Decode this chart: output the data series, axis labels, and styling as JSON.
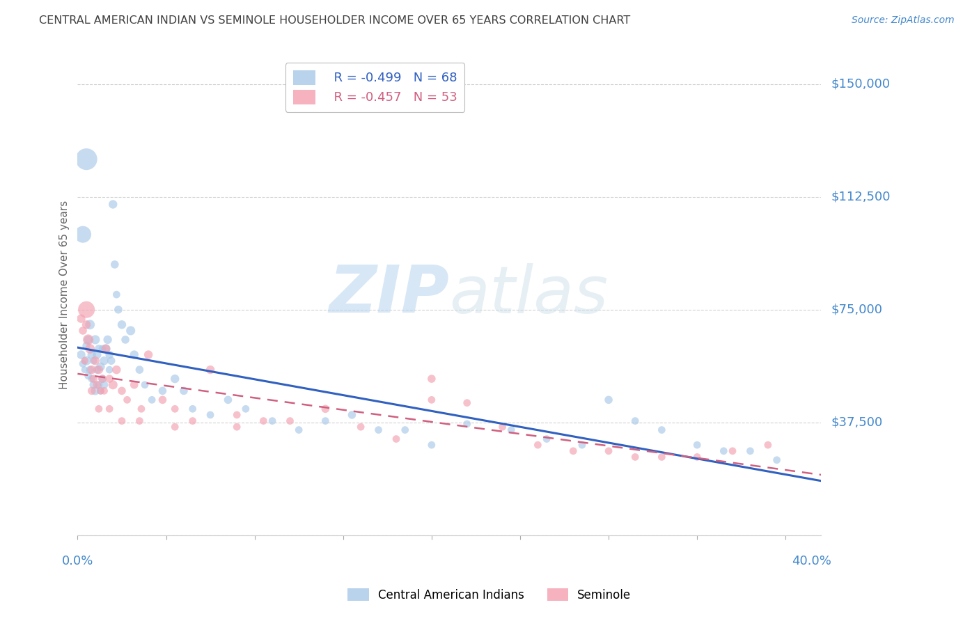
{
  "title": "CENTRAL AMERICAN INDIAN VS SEMINOLE HOUSEHOLDER INCOME OVER 65 YEARS CORRELATION CHART",
  "source": "Source: ZipAtlas.com",
  "ylabel": "Householder Income Over 65 years",
  "yticks": [
    0,
    37500,
    75000,
    112500,
    150000
  ],
  "ytick_labels": [
    "",
    "$37,500",
    "$75,000",
    "$112,500",
    "$150,000"
  ],
  "xlim": [
    0.0,
    0.42
  ],
  "ylim": [
    0,
    160000
  ],
  "legend_blue_r": "R = -0.499",
  "legend_blue_n": "N = 68",
  "legend_pink_r": "R = -0.457",
  "legend_pink_n": "N = 53",
  "blue_color": "#a8c8e8",
  "pink_color": "#f4a0b0",
  "line_blue": "#3060c0",
  "line_pink": "#d06080",
  "watermark_zip": "ZIP",
  "watermark_atlas": "atlas",
  "background_color": "#ffffff",
  "grid_color": "#cccccc",
  "title_color": "#404040",
  "axis_label_color": "#4488cc",
  "ylabel_color": "#666666",
  "blue_scatter_x": [
    0.002,
    0.003,
    0.004,
    0.005,
    0.005,
    0.006,
    0.006,
    0.007,
    0.007,
    0.008,
    0.008,
    0.009,
    0.009,
    0.01,
    0.01,
    0.011,
    0.011,
    0.012,
    0.012,
    0.013,
    0.013,
    0.014,
    0.014,
    0.015,
    0.015,
    0.016,
    0.017,
    0.018,
    0.018,
    0.019,
    0.02,
    0.021,
    0.022,
    0.023,
    0.025,
    0.027,
    0.03,
    0.032,
    0.035,
    0.038,
    0.042,
    0.048,
    0.055,
    0.06,
    0.065,
    0.075,
    0.085,
    0.095,
    0.11,
    0.125,
    0.14,
    0.155,
    0.17,
    0.185,
    0.2,
    0.22,
    0.245,
    0.265,
    0.285,
    0.3,
    0.315,
    0.33,
    0.35,
    0.365,
    0.38,
    0.395,
    0.005,
    0.003
  ],
  "blue_scatter_y": [
    60000,
    57000,
    55000,
    58000,
    63000,
    53000,
    65000,
    55000,
    70000,
    52000,
    60000,
    50000,
    58000,
    48000,
    65000,
    60000,
    55000,
    50000,
    62000,
    48000,
    56000,
    52000,
    62000,
    58000,
    50000,
    62000,
    65000,
    60000,
    55000,
    58000,
    110000,
    90000,
    80000,
    75000,
    70000,
    65000,
    68000,
    60000,
    55000,
    50000,
    45000,
    48000,
    52000,
    48000,
    42000,
    40000,
    45000,
    42000,
    38000,
    35000,
    38000,
    40000,
    35000,
    35000,
    30000,
    37000,
    35000,
    32000,
    30000,
    45000,
    38000,
    35000,
    30000,
    28000,
    28000,
    25000,
    125000,
    100000
  ],
  "blue_scatter_size": [
    80,
    60,
    50,
    90,
    70,
    60,
    80,
    70,
    100,
    60,
    80,
    70,
    60,
    80,
    90,
    80,
    70,
    60,
    70,
    60,
    80,
    70,
    60,
    80,
    70,
    90,
    80,
    70,
    60,
    70,
    80,
    70,
    60,
    70,
    80,
    70,
    90,
    80,
    70,
    60,
    60,
    70,
    80,
    70,
    60,
    60,
    70,
    60,
    60,
    60,
    60,
    70,
    60,
    60,
    60,
    60,
    60,
    60,
    60,
    70,
    60,
    60,
    60,
    60,
    60,
    60,
    500,
    300
  ],
  "pink_scatter_x": [
    0.002,
    0.003,
    0.004,
    0.005,
    0.006,
    0.007,
    0.008,
    0.009,
    0.01,
    0.011,
    0.012,
    0.013,
    0.014,
    0.015,
    0.016,
    0.018,
    0.02,
    0.022,
    0.025,
    0.028,
    0.032,
    0.036,
    0.04,
    0.048,
    0.055,
    0.065,
    0.075,
    0.09,
    0.105,
    0.12,
    0.14,
    0.16,
    0.18,
    0.2,
    0.22,
    0.24,
    0.26,
    0.28,
    0.3,
    0.315,
    0.33,
    0.35,
    0.37,
    0.39,
    0.005,
    0.008,
    0.012,
    0.018,
    0.025,
    0.035,
    0.055,
    0.09,
    0.2
  ],
  "pink_scatter_y": [
    72000,
    68000,
    58000,
    75000,
    65000,
    62000,
    55000,
    52000,
    58000,
    50000,
    55000,
    48000,
    52000,
    48000,
    62000,
    52000,
    50000,
    55000,
    48000,
    45000,
    50000,
    42000,
    60000,
    45000,
    42000,
    38000,
    55000,
    40000,
    38000,
    38000,
    42000,
    36000,
    32000,
    52000,
    44000,
    36000,
    30000,
    28000,
    28000,
    26000,
    26000,
    26000,
    28000,
    30000,
    70000,
    48000,
    42000,
    42000,
    38000,
    38000,
    36000,
    36000,
    45000
  ],
  "pink_scatter_size": [
    80,
    70,
    60,
    300,
    120,
    100,
    80,
    70,
    80,
    70,
    80,
    60,
    70,
    60,
    80,
    70,
    90,
    80,
    70,
    60,
    70,
    60,
    80,
    70,
    60,
    60,
    80,
    60,
    60,
    60,
    70,
    60,
    60,
    70,
    60,
    60,
    60,
    60,
    60,
    60,
    60,
    60,
    60,
    60,
    80,
    70,
    60,
    60,
    60,
    60,
    60,
    60,
    60
  ]
}
